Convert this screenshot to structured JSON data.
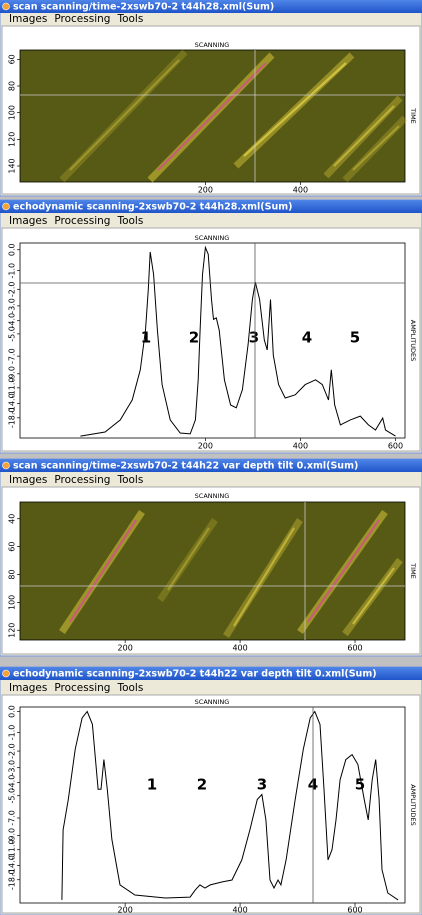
{
  "windows": [
    {
      "title": "scan scanning/time-2xswb70-2 t44h28.xml(Sum)",
      "menu": [
        "Images",
        "Processing",
        "Tools"
      ]
    },
    {
      "title": "echodynamic scanning-2xswb70-2 t44h28.xml(Sum)",
      "menu": [
        "Images",
        "Processing",
        "Tools"
      ]
    },
    {
      "title": "scan scanning/time-2xswb70-2 t44h22 var depth tilt 0.xml(Sum)",
      "menu": [
        "Images",
        "Processing",
        "Tools"
      ]
    },
    {
      "title": "echodynamic scanning-2xswb70-2 t44h22 var depth tilt 0.xml(Sum)",
      "menu": [
        "Images",
        "Processing",
        "Tools"
      ]
    }
  ],
  "chart_data": [
    {
      "type": "image",
      "title": "SCANNING",
      "y_label": "TIME",
      "xlim": [
        -190,
        620
      ],
      "xticks": [
        200,
        400
      ],
      "ylim": [
        53,
        152
      ],
      "yticks": [
        60,
        80,
        100,
        120,
        140
      ]
    },
    {
      "type": "line",
      "title": "SCANNING",
      "y_label": "AMPLITUDES",
      "yscale": "amplitude",
      "annotations": [
        "1",
        "2",
        "3",
        "4",
        "5"
      ],
      "xlim": [
        -190,
        620
      ],
      "xticks": [
        200,
        400,
        600
      ],
      "ylim": [
        -33.6,
        0.3
      ],
      "yticks": [
        {
          "value": -18,
          "label": "-18.0"
        },
        {
          "value": -14,
          "label": "-14.0"
        },
        {
          "value": -11,
          "label": "-11.0"
        },
        {
          "value": -9,
          "label": "-9.0"
        },
        {
          "value": -7,
          "label": "-7.0"
        },
        {
          "value": -5,
          "label": "-5.0"
        },
        {
          "value": -4,
          "label": "-4.0"
        },
        {
          "value": -3,
          "label": "-3.0"
        },
        {
          "value": -2,
          "label": "-2.0"
        },
        {
          "value": -1,
          "label": "-1.0"
        },
        {
          "value": 0,
          "label": "0.0"
        }
      ],
      "x": [
        -63,
        -11,
        21,
        46,
        63,
        74,
        80,
        84,
        91,
        99,
        109,
        126,
        147,
        168,
        179,
        185,
        189,
        194,
        200,
        206,
        213,
        217,
        223,
        229,
        240,
        253,
        265,
        278,
        290,
        299,
        305,
        314,
        324,
        330,
        337,
        343,
        354,
        368,
        389,
        410,
        432,
        446,
        459,
        465,
        472,
        484,
        505,
        526,
        543,
        558,
        573,
        579,
        600
      ],
      "series": [
        {
          "color": "#000000",
          "values": [
            -30.2,
            -25.7,
            -18.8,
            -13.2,
            -8.5,
            -4.7,
            -2.0,
            -0.1,
            -1.2,
            -4.7,
            -10.5,
            -18.8,
            -26.6,
            -27.5,
            -18.8,
            -9.8,
            -4.7,
            -1.2,
            0.1,
            -0.2,
            -2.6,
            -3.9,
            -3.8,
            -4.7,
            -9.8,
            -14.3,
            -15.0,
            -11.3,
            -5.9,
            -2.6,
            -1.6,
            -2.6,
            -5.5,
            -6.4,
            -2.6,
            -6.9,
            -10.5,
            -12.8,
            -12.2,
            -10.5,
            -9.8,
            -10.5,
            -13.2,
            -8.5,
            -14.3,
            -21.0,
            -18.8,
            -17.4,
            -21.0,
            -24.1,
            -18.1,
            -24.1,
            -30.2
          ]
        }
      ]
    },
    {
      "type": "image",
      "title": "SCANNING",
      "y_label": "TIME",
      "xlim": [
        17,
        687
      ],
      "xticks": [
        200,
        400,
        600
      ],
      "ylim": [
        28,
        127
      ],
      "yticks": [
        40,
        60,
        80,
        100,
        120
      ]
    },
    {
      "type": "line",
      "title": "SCANNING",
      "y_label": "AMPLITUDES",
      "yscale": "amplitude",
      "annotations": [
        "1",
        "2",
        "3",
        "4",
        "5"
      ],
      "xlim": [
        17,
        687
      ],
      "xticks": [
        200,
        400,
        600
      ],
      "ylim": [
        -46,
        0.2
      ],
      "yticks": [
        {
          "value": -18,
          "label": "-18.0"
        },
        {
          "value": -14,
          "label": "-14.0"
        },
        {
          "value": -11,
          "label": "-11.0"
        },
        {
          "value": -9,
          "label": "-9.0"
        },
        {
          "value": -7,
          "label": "-7.0"
        },
        {
          "value": -5,
          "label": "-5.0"
        },
        {
          "value": -4,
          "label": "-4.0"
        },
        {
          "value": -3,
          "label": "-3.0"
        },
        {
          "value": -2,
          "label": "-2.0"
        },
        {
          "value": -1,
          "label": "-1.0"
        },
        {
          "value": 0,
          "label": "0.0"
        }
      ],
      "x": [
        90,
        92,
        101,
        113,
        125,
        134,
        143,
        153,
        158,
        163,
        169,
        177,
        191,
        217,
        270,
        313,
        322,
        330,
        339,
        348,
        369,
        386,
        403,
        417,
        430,
        438,
        445,
        452,
        459,
        466,
        471,
        480,
        496,
        510,
        522,
        530,
        539,
        546,
        553,
        560,
        567,
        574,
        584,
        595,
        605,
        616,
        623,
        630,
        636,
        642,
        647,
        657,
        675
      ],
      "series": [
        {
          "color": "#000000",
          "values": [
            -33.6,
            -8.3,
            -5.3,
            -1.9,
            -0.3,
            0,
            -0.6,
            -4.5,
            -4.5,
            -2.5,
            -4.5,
            -9.5,
            -20.1,
            -26.6,
            -30.2,
            -28.9,
            -22.7,
            -20.1,
            -21.6,
            -20.1,
            -18.8,
            -18.1,
            -12.8,
            -8.3,
            -5.3,
            -4.9,
            -7.2,
            -18.1,
            -21.6,
            -18.1,
            -20.1,
            -12.8,
            -5.3,
            -1.9,
            -0.3,
            0,
            -0.6,
            -4.5,
            -12.8,
            -11.0,
            -7.2,
            -3.8,
            -2.5,
            -2.2,
            -2.8,
            -5.3,
            -7.2,
            -3.8,
            -2.5,
            -5.3,
            -15.0,
            -24.9,
            -33.6
          ]
        }
      ]
    }
  ]
}
